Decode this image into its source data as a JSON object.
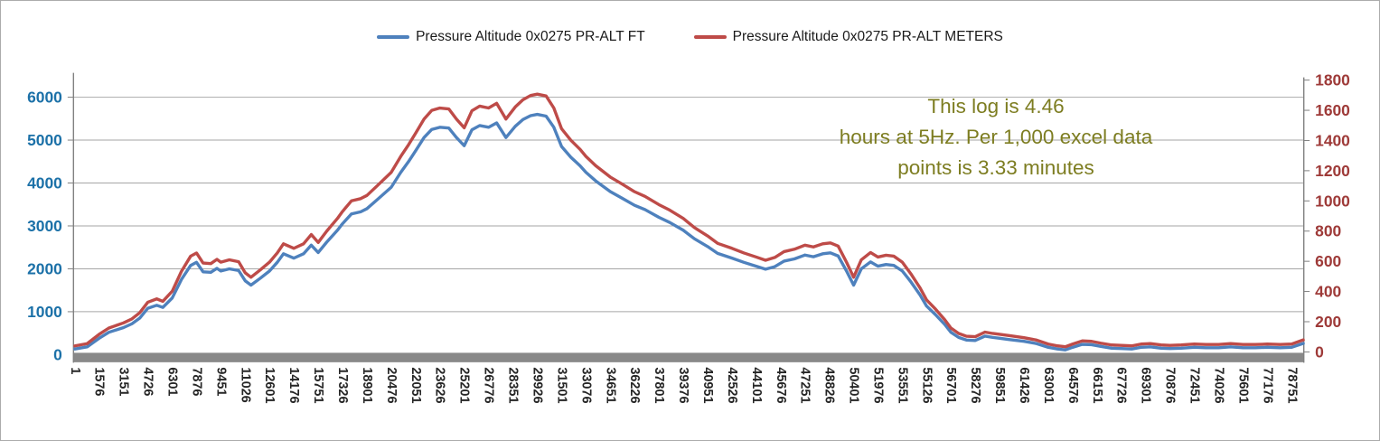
{
  "legend": {
    "items": [
      {
        "label": "Pressure Altitude 0x0275 PR-ALT FT",
        "color": "#4e81bd"
      },
      {
        "label": "Pressure Altitude 0x0275 PR-ALT METERS",
        "color": "#be4b48"
      }
    ]
  },
  "annotation": {
    "text": "This log is 4.46 hours at 5Hz. Per 1,000 excel data points is 3.33 minutes",
    "lines": [
      "This log is 4.46",
      "hours at 5Hz. Per 1,000 excel data",
      "points is 3.33 minutes"
    ],
    "color": "#7d7d21"
  },
  "colors": {
    "gridline": "#a6a6a6",
    "axis_line": "#808080",
    "axis_bar": "#898989",
    "x_label": "#262626",
    "left_axis_label": "#1c71a8",
    "right_axis_label": "#9e3a38"
  },
  "chart_data": {
    "type": "line",
    "title": "",
    "grid": "horizontal",
    "legend_position": "top",
    "x_ticks": [
      1,
      1576,
      3151,
      4726,
      6301,
      7876,
      9451,
      11026,
      12601,
      14176,
      15751,
      17326,
      18901,
      20476,
      22051,
      23626,
      25201,
      26776,
      28351,
      29926,
      31501,
      33076,
      34651,
      36226,
      37801,
      39376,
      40951,
      42526,
      44101,
      45676,
      47251,
      48826,
      50401,
      51976,
      53551,
      55126,
      56701,
      58276,
      59851,
      61426,
      63001,
      64576,
      66151,
      67726,
      69301,
      70876,
      72451,
      74026,
      75601,
      77176,
      78751
    ],
    "left_axis": {
      "ticks": [
        0,
        1000,
        2000,
        3000,
        4000,
        5000,
        6000
      ],
      "range": [
        0,
        6000
      ],
      "color": "#1c71a8"
    },
    "right_axis": {
      "ticks": [
        0,
        200,
        400,
        600,
        800,
        1000,
        1200,
        1400,
        1600,
        1800
      ],
      "range": [
        0,
        1800
      ],
      "color": "#9e3a38"
    },
    "x": [
      1,
      800,
      1576,
      2200,
      3151,
      3700,
      4200,
      4726,
      5300,
      5700,
      6301,
      6900,
      7500,
      7876,
      8300,
      8800,
      9200,
      9451,
      10000,
      10600,
      11026,
      11400,
      12000,
      12601,
      13100,
      13500,
      14176,
      14800,
      15300,
      15751,
      16300,
      17000,
      17326,
      17900,
      18500,
      18901,
      19600,
      20476,
      21100,
      21600,
      22051,
      22600,
      23100,
      23626,
      24200,
      24700,
      25201,
      25700,
      26200,
      26776,
      27300,
      27900,
      28500,
      29000,
      29500,
      29926,
      30500,
      31000,
      31501,
      32100,
      32700,
      33076,
      33700,
      34651,
      35400,
      36226,
      36900,
      37801,
      38500,
      39376,
      40100,
      40951,
      41600,
      42526,
      43300,
      44101,
      44700,
      45300,
      45900,
      46570,
      47251,
      47800,
      48400,
      48900,
      49400,
      49940,
      50401,
      50900,
      51500,
      51976,
      52500,
      53000,
      53551,
      54100,
      54700,
      55126,
      55700,
      56300,
      56701,
      57200,
      57700,
      58276,
      58900,
      59400,
      59851,
      60500,
      61426,
      62200,
      63001,
      63600,
      64100,
      64576,
      65200,
      65800,
      66400,
      67100,
      67726,
      68400,
      69000,
      69600,
      70300,
      70876,
      71600,
      72451,
      73200,
      74026,
      74800,
      75601,
      76400,
      77176,
      78000,
      78751,
      79500
    ],
    "series": [
      {
        "name": "Pressure Altitude 0x0275 PR-ALT FT",
        "axis": "left",
        "color": "#4e81bd",
        "values": [
          130,
          180,
          380,
          520,
          630,
          720,
          850,
          1080,
          1150,
          1100,
          1320,
          1750,
          2080,
          2150,
          1930,
          1920,
          2010,
          1950,
          2000,
          1960,
          1720,
          1620,
          1780,
          1950,
          2150,
          2350,
          2250,
          2350,
          2550,
          2380,
          2620,
          2900,
          3050,
          3280,
          3330,
          3400,
          3620,
          3900,
          4250,
          4500,
          4750,
          5060,
          5250,
          5300,
          5280,
          5060,
          4870,
          5240,
          5340,
          5300,
          5400,
          5060,
          5320,
          5480,
          5570,
          5600,
          5560,
          5300,
          4850,
          4600,
          4400,
          4250,
          4050,
          3800,
          3650,
          3480,
          3380,
          3200,
          3080,
          2900,
          2700,
          2520,
          2360,
          2250,
          2150,
          2060,
          1990,
          2050,
          2180,
          2230,
          2320,
          2280,
          2350,
          2370,
          2300,
          1950,
          1620,
          2000,
          2160,
          2060,
          2100,
          2080,
          1950,
          1700,
          1390,
          1130,
          930,
          700,
          520,
          400,
          340,
          330,
          430,
          400,
          380,
          350,
          310,
          260,
          170,
          130,
          110,
          170,
          240,
          230,
          190,
          150,
          140,
          130,
          170,
          180,
          150,
          140,
          150,
          170,
          160,
          160,
          180,
          160,
          160,
          170,
          160,
          170,
          260
        ]
      },
      {
        "name": "Pressure Altitude 0x0275 PR-ALT METERS",
        "axis": "right",
        "color": "#be4b48",
        "values": [
          40,
          55,
          116,
          158,
          192,
          219,
          259,
          329,
          351,
          335,
          402,
          533,
          634,
          655,
          588,
          585,
          613,
          594,
          610,
          597,
          524,
          494,
          543,
          594,
          655,
          716,
          686,
          716,
          777,
          725,
          799,
          884,
          930,
          1000,
          1015,
          1036,
          1103,
          1189,
          1295,
          1372,
          1448,
          1542,
          1600,
          1615,
          1609,
          1542,
          1484,
          1597,
          1628,
          1615,
          1646,
          1542,
          1622,
          1670,
          1698,
          1707,
          1695,
          1615,
          1478,
          1402,
          1341,
          1295,
          1234,
          1158,
          1113,
          1061,
          1030,
          975,
          939,
          884,
          823,
          768,
          719,
          686,
          655,
          628,
          607,
          625,
          664,
          680,
          707,
          695,
          716,
          722,
          701,
          594,
          494,
          610,
          658,
          628,
          640,
          634,
          594,
          518,
          424,
          344,
          283,
          213,
          158,
          122,
          104,
          101,
          131,
          122,
          116,
          107,
          94,
          79,
          52,
          40,
          34,
          52,
          73,
          70,
          58,
          46,
          43,
          40,
          52,
          55,
          46,
          43,
          46,
          52,
          49,
          49,
          55,
          49,
          49,
          52,
          49,
          52,
          79
        ]
      }
    ]
  }
}
